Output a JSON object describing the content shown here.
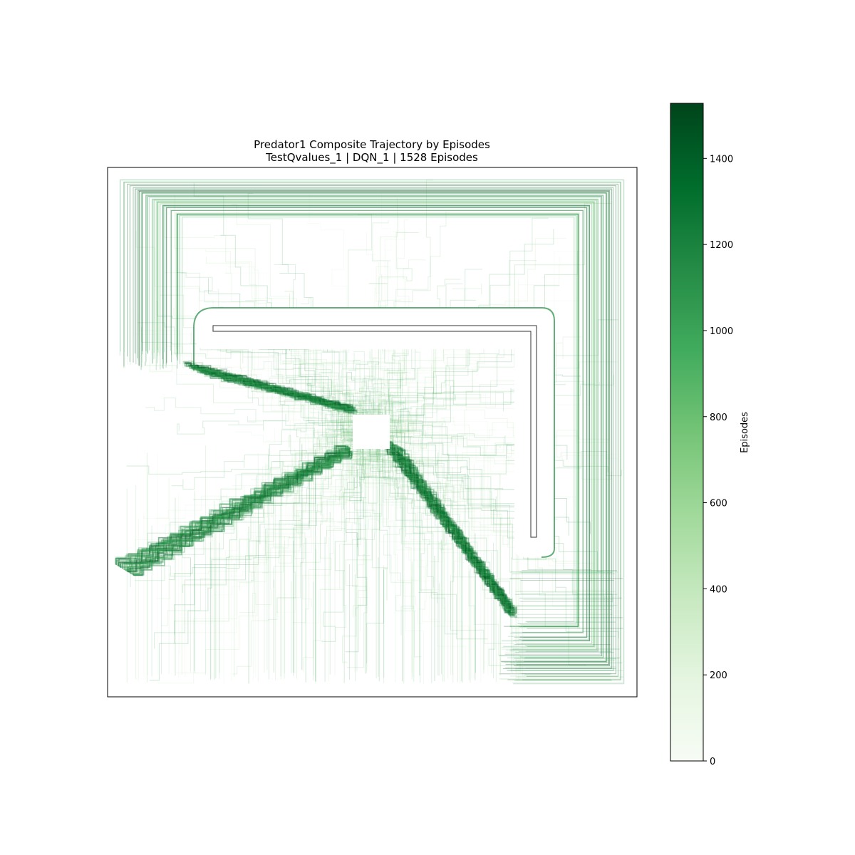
{
  "chart_data": {
    "type": "line",
    "title": "Predator1 Composite Trajectory by Episodes",
    "subtitle": "TestQvalues_1 | DQN_1 | 1528 Episodes",
    "xlabel": "",
    "ylabel": "",
    "grid": false,
    "axes_ticks_visible": false,
    "episode_count": 1528,
    "colormap": "Greens",
    "colormap_stops": [
      "#f7fcf5",
      "#e5f5e0",
      "#c7e9c0",
      "#a1d99b",
      "#74c476",
      "#41ab5d",
      "#238b45",
      "#006d2c",
      "#00441b"
    ],
    "colorbar": {
      "label": "Episodes",
      "range": [
        0,
        1528
      ],
      "ticks": [
        0,
        200,
        400,
        600,
        800,
        1000,
        1200,
        1400
      ],
      "tick_labels": [
        "0",
        "200",
        "400",
        "600",
        "800",
        "1000",
        "1200",
        "1400"
      ],
      "placement": "right"
    },
    "features": {
      "obstacle": "L-shaped wall along the top-middle and right side",
      "dense_paths": "diagonal corridors converging on a central target from upper-left, lower-left and lower-right",
      "border_loops": "rectangular perimeter routes around the arena"
    }
  }
}
